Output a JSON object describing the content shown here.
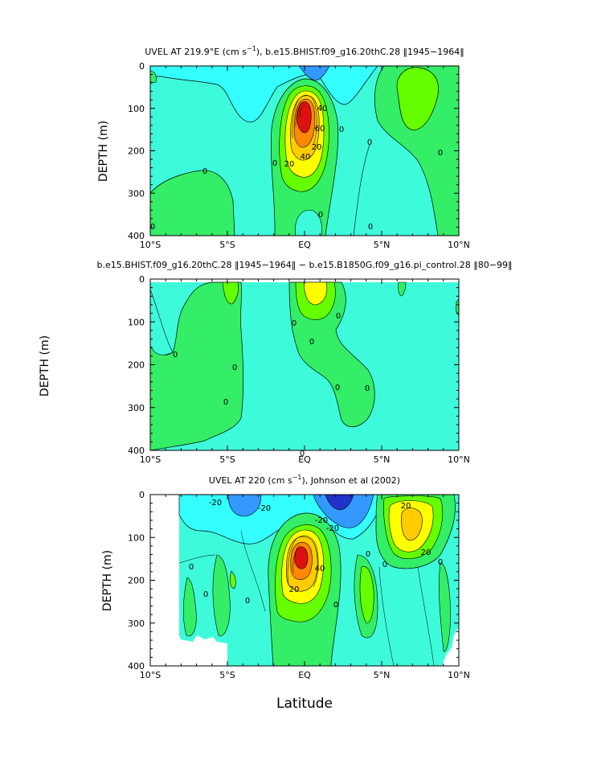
{
  "figure": {
    "xlabel": "Latitude",
    "colors": {
      "deep_blue": "#2233cc",
      "blue": "#3399ff",
      "cyan": "#33ffff",
      "aqua": "#3dfbda",
      "light_green": "#33f0a0",
      "mint": "#33ee66",
      "green": "#66ff00",
      "yellow": "#ffff00",
      "gold": "#ffcc00",
      "orange": "#ff8800",
      "red_orange": "#ff4400",
      "red": "#dd1111"
    }
  },
  "chart_data": [
    {
      "type": "contour",
      "title_parts": [
        "UVEL AT 219.9°E (cm s",
        "−1",
        "), b.e15.BHIST.f09_g16.20thC.28 ‖1945−1964‖"
      ],
      "xlabel": "",
      "ylabel": "DEPTH (m)",
      "x_ticks": [
        "10°S",
        "5°S",
        "EQ",
        "5°N",
        "10°N"
      ],
      "xlim": [
        -10,
        10
      ],
      "y_ticks": [
        "0",
        "100",
        "200",
        "300",
        "400"
      ],
      "ylim": [
        0,
        400
      ],
      "y_inverted": true,
      "contour_labels": [
        "0",
        "0",
        "0",
        "0",
        "0",
        "0",
        "0",
        "0",
        "20",
        "20",
        "40",
        "40",
        "60"
      ],
      "core": {
        "lat": 0.0,
        "depth": 130,
        "value_approx": 100
      }
    },
    {
      "type": "contour",
      "title_parts": [
        "b.e15.BHIST.f09_g16.20thC.28 ‖1945−1964‖ − b.e15.B1850G.f09_g16.pi_control.28 ‖80−99‖"
      ],
      "xlabel": "",
      "ylabel": "DEPTH (m)",
      "x_ticks": [
        "10°S",
        "5°S",
        "EQ",
        "5°N",
        "10°N"
      ],
      "xlim": [
        -10,
        10
      ],
      "y_ticks": [
        "0",
        "100",
        "200",
        "300",
        "400"
      ],
      "ylim": [
        0,
        400
      ],
      "y_inverted": true,
      "contour_labels": [
        "0",
        "0",
        "0",
        "0",
        "0",
        "0",
        "0",
        "0",
        "0"
      ]
    },
    {
      "type": "contour",
      "title_parts": [
        "UVEL AT 220 (cm s",
        "−1",
        "), Johnson et al (2002)"
      ],
      "xlabel": "Latitude",
      "ylabel": "DEPTH (m)",
      "x_ticks": [
        "10°S",
        "5°S",
        "EQ",
        "5°N",
        "10°N"
      ],
      "xlim": [
        -10,
        10
      ],
      "y_ticks": [
        "0",
        "100",
        "200",
        "300",
        "400"
      ],
      "ylim": [
        0,
        400
      ],
      "y_inverted": true,
      "contour_labels": [
        "-20",
        "-20",
        "-20",
        "-20",
        "0",
        "0",
        "0",
        "0",
        "0",
        "0",
        "0",
        "20",
        "20",
        "20",
        "40"
      ],
      "core": {
        "lat": 0.0,
        "depth": 110,
        "value_approx": 100
      }
    }
  ]
}
